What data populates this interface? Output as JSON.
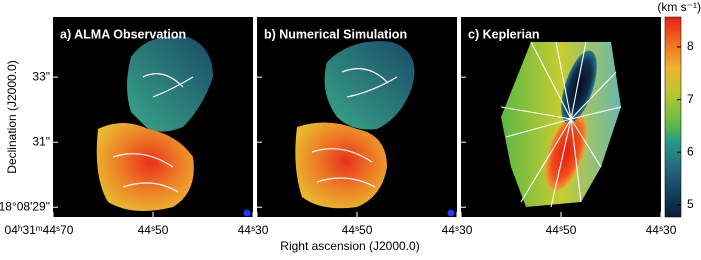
{
  "chart_data": {
    "type": "map",
    "panels": [
      {
        "title": "a) ALMA Observation"
      },
      {
        "title": "b) Numerical Simulation"
      },
      {
        "title": "c) Keplerian"
      }
    ],
    "xlabel": "Right ascension (J2000.0)",
    "ylabel": "Declination (J2000.0)",
    "xlim": [
      44.7,
      44.3
    ],
    "xticks": [
      {
        "value": 44.7,
        "label": "04ʰ31ᵐ44ˢ70"
      },
      {
        "value": 44.5,
        "label": "44ˢ50"
      },
      {
        "value": 44.3,
        "label": "44ˢ30"
      }
    ],
    "ylim": [
      28.7,
      34.85
    ],
    "yticks": [
      {
        "value": 29,
        "label": "18°08'29\""
      },
      {
        "value": 31,
        "label": "31\""
      },
      {
        "value": 33,
        "label": "33\""
      }
    ],
    "colorbar": {
      "label": "(km s⁻¹)",
      "lim": [
        4.77,
        8.57
      ],
      "ticks": [
        5,
        6,
        7,
        8
      ]
    }
  }
}
